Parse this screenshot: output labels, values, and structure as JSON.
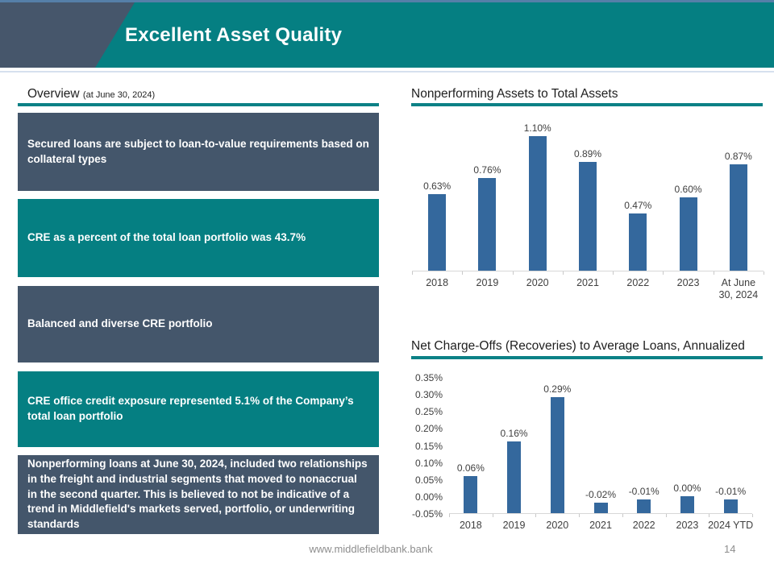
{
  "header": {
    "title": "Excellent Asset Quality"
  },
  "overview": {
    "heading": "Overview",
    "heading_note": "(at June 30, 2024)",
    "boxes": [
      {
        "style": "slate",
        "text": "Secured loans are subject to loan-to-value requirements based on collateral types"
      },
      {
        "style": "teal",
        "text": "CRE as a percent of the total loan portfolio was 43.7%"
      },
      {
        "style": "slate",
        "text": "Balanced and diverse CRE portfolio"
      },
      {
        "style": "teal",
        "text": "CRE office credit exposure represented 5.1% of the Company’s total loan portfolio"
      },
      {
        "style": "slate",
        "text": "Nonperforming loans at June 30, 2024, included two relationships in the freight and industrial segments that moved to nonaccrual in the second quarter. This is believed to not be indicative of a trend in Middlefield's markets served, portfolio, or underwriting standards"
      }
    ]
  },
  "chart_data": [
    {
      "type": "bar",
      "title": "Nonperforming Assets to Total Assets",
      "categories": [
        "2018",
        "2019",
        "2020",
        "2021",
        "2022",
        "2023",
        "At June 30, 2024"
      ],
      "values": [
        0.63,
        0.76,
        1.1,
        0.89,
        0.47,
        0.6,
        0.87
      ],
      "data_labels": [
        "0.63%",
        "0.76%",
        "1.10%",
        "0.89%",
        "0.47%",
        "0.60%",
        "0.87%"
      ],
      "unit": "percent",
      "ylim": [
        0,
        1.32
      ],
      "gridlines": false,
      "legend": "none",
      "data_labels_visible": true,
      "bar_color": "#34689D"
    },
    {
      "type": "bar",
      "title": "Net Charge-Offs (Recoveries) to Average Loans, Annualized",
      "categories": [
        "2018",
        "2019",
        "2020",
        "2021",
        "2022",
        "2023",
        "2024 YTD"
      ],
      "values": [
        0.06,
        0.16,
        0.29,
        -0.02,
        -0.01,
        0.0,
        -0.01
      ],
      "data_labels": [
        "0.06%",
        "0.16%",
        "0.29%",
        "-0.02%",
        "-0.01%",
        "0.00%",
        "-0.01%"
      ],
      "y_ticks": [
        "0.35%",
        "0.30%",
        "0.25%",
        "0.20%",
        "0.15%",
        "0.10%",
        "0.05%",
        "0.00%",
        "-0.05%"
      ],
      "unit": "percent",
      "ylim": [
        -0.05,
        0.35
      ],
      "gridlines": false,
      "legend": "none",
      "data_labels_visible": true,
      "bar_color": "#34689D"
    }
  ],
  "footer": {
    "website": "www.middlefieldbank.bank",
    "page_number": "14"
  },
  "colors": {
    "teal": "#057F82",
    "slate": "#44566B",
    "bar_blue": "#34689D",
    "rule_teal": "#0C8186",
    "header_top_line": "#557FA8"
  }
}
